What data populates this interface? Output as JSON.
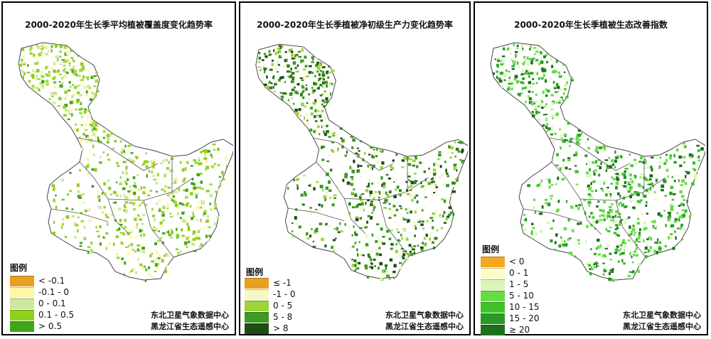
{
  "panels": [
    {
      "title": "2000-2020年生长季平均植被覆盖度变化趋势率",
      "legend_title": "图例",
      "legend": [
        {
          "label": "< -0.1",
          "color": "#e8a020"
        },
        {
          "label": "-0.1 - 0",
          "color": "#fdf7a6"
        },
        {
          "label": "0 - 0.1",
          "color": "#cfe79a"
        },
        {
          "label": "0.1 - 0.5",
          "color": "#8fcf1e"
        },
        {
          "label": "> 0.5",
          "color": "#3ea61a"
        }
      ],
      "source_line1": "东北卫星气象数据中心",
      "source_line2": "黑龙江省生态遥感中心"
    },
    {
      "title": "2000-2020年生长季植被净初级生产力变化趋势率",
      "legend_title": "图例",
      "legend": [
        {
          "label": "≤ -1",
          "color": "#e8a020"
        },
        {
          "label": "-1 - 0",
          "color": "#f3f8c6"
        },
        {
          "label": "0 - 5",
          "color": "#9ed33a"
        },
        {
          "label": "5 - 8",
          "color": "#3e9a22"
        },
        {
          "label": "> 8",
          "color": "#1f4c14"
        }
      ],
      "source_line1": "东北卫星气象数据中心",
      "source_line2": "黑龙江省生态遥感中心"
    },
    {
      "title": "2000-2020年生长季植被生态改善指数",
      "legend_title": "图例",
      "legend": [
        {
          "label": "< 0",
          "color": "#f5a623"
        },
        {
          "label": "0 - 1",
          "color": "#fdfcc8"
        },
        {
          "label": "1 - 5",
          "color": "#d8f5b6"
        },
        {
          "label": "5 - 10",
          "color": "#66dd44"
        },
        {
          "label": "10 - 15",
          "color": "#3dc22a"
        },
        {
          "label": "15 - 20",
          "color": "#2a9a26"
        },
        {
          "label": "≥ 20",
          "color": "#1e6f1e"
        }
      ],
      "source_line1": "东北卫星气象数据中心",
      "source_line2": "黑龙江省生态遥感中心"
    }
  ]
}
